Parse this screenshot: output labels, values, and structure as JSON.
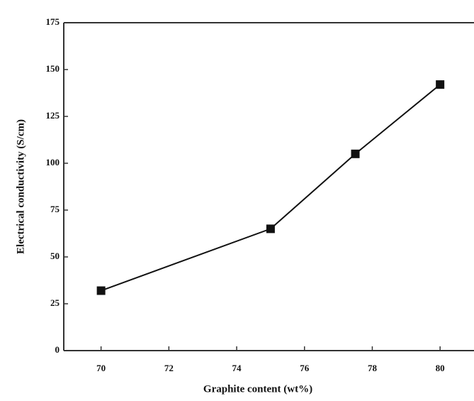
{
  "chart_data": {
    "type": "line",
    "x_label": "Graphite content (wt%)",
    "y_label": "Electrical conductivity (S/cm)",
    "x": [
      70,
      75,
      77.5,
      80
    ],
    "series": [
      {
        "color": "#111111",
        "values": [
          32,
          65,
          105,
          142
        ]
      }
    ],
    "xlim": [
      68.9,
      81
    ],
    "xticks": [
      70,
      72,
      74,
      76,
      78,
      80
    ],
    "ylim": [
      0,
      175
    ],
    "yticks": [
      0,
      25,
      50,
      75,
      100,
      125,
      150,
      175
    ],
    "grid": false
  }
}
